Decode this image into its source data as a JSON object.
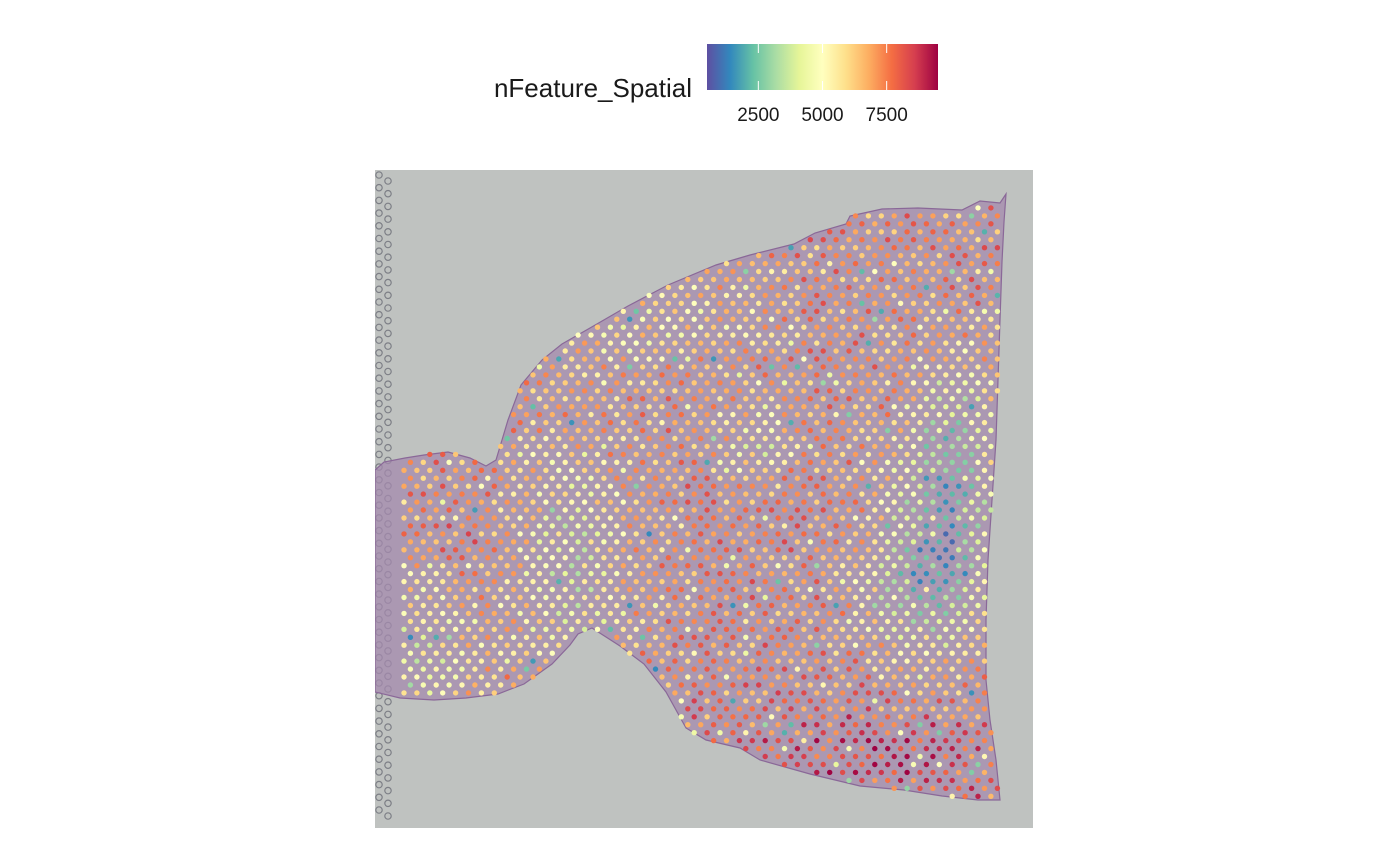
{
  "chart_data": {
    "type": "spatial-scatter",
    "title": "",
    "legend": {
      "title": "nFeature_Spatial",
      "placement": "top",
      "ticks": [
        {
          "value": 2500,
          "label": "2500"
        },
        {
          "value": 5000,
          "label": "5000"
        },
        {
          "value": 7500,
          "label": "7500"
        }
      ],
      "range": [
        500,
        9500
      ],
      "palette": [
        "#5e4fa2",
        "#3288bd",
        "#66c2a5",
        "#abdda4",
        "#e6f598",
        "#ffffbf",
        "#fee08b",
        "#fdae61",
        "#f46d43",
        "#d53e4f",
        "#9e0142"
      ]
    },
    "series": {
      "variable": "nFeature_Spatial",
      "summary": "Visium spots over an H&E tissue section; most spots in the orange-red range (~6000–8500), a pale yellow/green band across the narrow neck and left lobe edge (~4000–5500), and blue/teal patches (~1000–3000) along the right-centre region.",
      "grid": "hexagonal spot grid, approx. 48 columns by 75 rows"
    },
    "grid_lines": false,
    "axes": "none",
    "background_image": "H&E stained tissue section on grey slide"
  }
}
